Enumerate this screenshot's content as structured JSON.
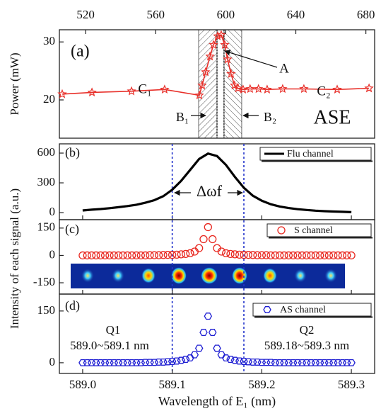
{
  "chart_data": [
    {
      "type": "line",
      "ylabel": "Power (mW)",
      "xaxis": "top",
      "xlim": [
        505,
        685
      ],
      "xticks": [
        520,
        560,
        600,
        640,
        680
      ],
      "ylim": [
        13.4,
        32.1
      ],
      "yticks": [
        20,
        30
      ],
      "x": [
        506.6,
        523.6,
        546.2,
        565.1,
        584.9,
        586.5,
        588.5,
        591.0,
        593.0,
        595.4,
        597.4,
        599.4,
        601.0,
        603.0,
        605.0,
        607.0,
        609.9,
        613.9,
        618.7,
        623.6,
        632.5,
        644.6,
        663.6,
        681.8
      ],
      "series": [
        {
          "color": "#e8302a",
          "marker": "star",
          "values": [
            21.0,
            21.3,
            21.5,
            21.8,
            20.8,
            22.5,
            24.8,
            27.5,
            29.5,
            31.0,
            31.2,
            29.5,
            27.0,
            24.5,
            22.5,
            22.0,
            21.8,
            21.9,
            21.9,
            21.8,
            21.9,
            21.9,
            21.8,
            22.0
          ]
        }
      ],
      "hatched_ranges": [
        [
          584.5,
          595
        ],
        [
          599,
          609.1
        ]
      ],
      "dotted_lines": [
        595,
        599
      ],
      "annotations": [
        "(a)",
        "C₁",
        "C₂",
        "A",
        "B₁",
        "B₂",
        "ASE"
      ]
    },
    {
      "type": "line",
      "xlim": [
        588.974,
        589.326
      ],
      "ylim": [
        -71,
        693
      ],
      "yticks": [
        0,
        300,
        600
      ],
      "x": [
        589.0,
        589.01,
        589.02,
        589.03,
        589.04,
        589.05,
        589.06,
        589.07,
        589.08,
        589.09,
        589.1,
        589.11,
        589.12,
        589.13,
        589.14,
        589.15,
        589.16,
        589.17,
        589.18,
        589.19,
        589.2,
        589.21,
        589.22,
        589.23,
        589.24,
        589.25,
        589.26,
        589.27,
        589.28,
        589.29,
        589.3
      ],
      "series": [
        {
          "name": "Flu channel",
          "color": "#000000",
          "marker": "none",
          "values": [
            22,
            30,
            36,
            45,
            55,
            66,
            80,
            100,
            125,
            165,
            230,
            320,
            430,
            540,
            595,
            570,
            480,
            360,
            250,
            170,
            120,
            85,
            62,
            46,
            35,
            27,
            20,
            15,
            11,
            8,
            5
          ]
        }
      ],
      "vlines": [
        589.1,
        589.18
      ],
      "legend": "upper right",
      "annotations": [
        "(b)",
        "Δωf"
      ]
    },
    {
      "type": "scatter",
      "ylabel": "Intensity of each signal (a.u.)",
      "xlim": [
        588.974,
        589.326
      ],
      "ylim": [
        -212,
        196
      ],
      "yticks": [
        -150,
        0,
        150
      ],
      "x": [
        589.0,
        589.005,
        589.01,
        589.015,
        589.02,
        589.025,
        589.03,
        589.035,
        589.04,
        589.045,
        589.05,
        589.055,
        589.06,
        589.065,
        589.07,
        589.075,
        589.08,
        589.085,
        589.09,
        589.095,
        589.1,
        589.105,
        589.11,
        589.115,
        589.12,
        589.125,
        589.13,
        589.135,
        589.14,
        589.145,
        589.15,
        589.155,
        589.16,
        589.165,
        589.17,
        589.175,
        589.18,
        589.185,
        589.19,
        589.195,
        589.2,
        589.205,
        589.21,
        589.215,
        589.22,
        589.225,
        589.23,
        589.235,
        589.24,
        589.245,
        589.25,
        589.255,
        589.26,
        589.265,
        589.27,
        589.275,
        589.28,
        589.285,
        589.29,
        589.295,
        589.3
      ],
      "series": [
        {
          "name": "S channel",
          "color": "#e8261e",
          "marker": "circle",
          "values": [
            0,
            0,
            0,
            0,
            0,
            0,
            0,
            0,
            0,
            0,
            0,
            0,
            0,
            0,
            0,
            1,
            1,
            1,
            2,
            3,
            3,
            4,
            6,
            8,
            12,
            21,
            40,
            89,
            155,
            89,
            40,
            21,
            12,
            8,
            6,
            4,
            3,
            3,
            2,
            1,
            1,
            1,
            0,
            0,
            0,
            0,
            0,
            0,
            0,
            0,
            0,
            0,
            0,
            0,
            0,
            0,
            0,
            0,
            0,
            0,
            0
          ]
        }
      ],
      "legend": "upper right",
      "annotations": [
        "(c)"
      ]
    },
    {
      "type": "scatter",
      "xlabel": "Wavelength of E₁ (nm)",
      "xlim": [
        588.974,
        589.326
      ],
      "xticks": [
        {
          "value": 589,
          "label": "589.0"
        },
        589.1,
        589.2,
        589.3
      ],
      "ylim": [
        -31,
        199
      ],
      "yticks": [
        0,
        150
      ],
      "x": [
        589.0,
        589.005,
        589.01,
        589.015,
        589.02,
        589.025,
        589.03,
        589.035,
        589.04,
        589.045,
        589.05,
        589.055,
        589.06,
        589.065,
        589.07,
        589.075,
        589.08,
        589.085,
        589.09,
        589.095,
        589.1,
        589.105,
        589.11,
        589.115,
        589.12,
        589.125,
        589.13,
        589.135,
        589.14,
        589.145,
        589.15,
        589.155,
        589.16,
        589.165,
        589.17,
        589.175,
        589.18,
        589.185,
        589.19,
        589.195,
        589.2,
        589.205,
        589.21,
        589.215,
        589.22,
        589.225,
        589.23,
        589.235,
        589.24,
        589.245,
        589.25,
        589.255,
        589.26,
        589.265,
        589.27,
        589.275,
        589.28,
        589.285,
        589.29,
        589.295,
        589.3
      ],
      "series": [
        {
          "name": "AS channel",
          "color": "#1e1ed2",
          "marker": "hexagon",
          "values": [
            0,
            0,
            0,
            0,
            0,
            0,
            0,
            0,
            0,
            0,
            0,
            0,
            0,
            0,
            1,
            1,
            1,
            2,
            2,
            3,
            4,
            5,
            7,
            10,
            14,
            23,
            42,
            88,
            135,
            88,
            42,
            23,
            14,
            10,
            7,
            5,
            4,
            3,
            2,
            2,
            1,
            1,
            1,
            0,
            0,
            0,
            0,
            0,
            0,
            0,
            0,
            0,
            0,
            0,
            0,
            0,
            0,
            0,
            0,
            0,
            0
          ]
        }
      ],
      "legend": "upper right",
      "annotations": [
        "(d)",
        "Q1",
        "589.0~589.1 nm",
        "Q2",
        "589.18~589.3 nm"
      ]
    }
  ]
}
